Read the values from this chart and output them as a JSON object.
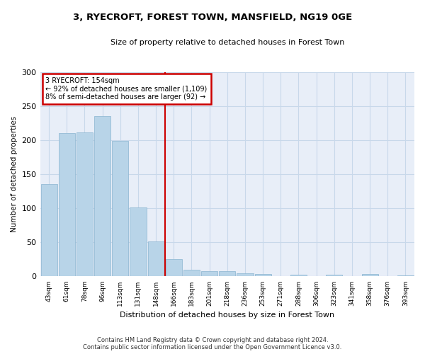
{
  "title": "3, RYECROFT, FOREST TOWN, MANSFIELD, NG19 0GE",
  "subtitle": "Size of property relative to detached houses in Forest Town",
  "xlabel": "Distribution of detached houses by size in Forest Town",
  "ylabel": "Number of detached properties",
  "footer_line1": "Contains HM Land Registry data © Crown copyright and database right 2024.",
  "footer_line2": "Contains public sector information licensed under the Open Government Licence v3.0.",
  "bin_labels": [
    "43sqm",
    "61sqm",
    "78sqm",
    "96sqm",
    "113sqm",
    "131sqm",
    "148sqm",
    "166sqm",
    "183sqm",
    "201sqm",
    "218sqm",
    "236sqm",
    "253sqm",
    "271sqm",
    "288sqm",
    "306sqm",
    "323sqm",
    "341sqm",
    "358sqm",
    "376sqm",
    "393sqm"
  ],
  "bar_values": [
    136,
    210,
    212,
    235,
    199,
    101,
    51,
    25,
    10,
    8,
    8,
    5,
    4,
    0,
    3,
    0,
    3,
    0,
    4,
    0,
    2
  ],
  "bar_color": "#b8d4e8",
  "bar_edgecolor": "#8ab4d0",
  "grid_color": "#c8d8ea",
  "annotation_line_label": "3 RYECROFT: 154sqm",
  "annotation_text_line2": "← 92% of detached houses are smaller (1,109)",
  "annotation_text_line3": "8% of semi-detached houses are larger (92) →",
  "annotation_box_facecolor": "#ffffff",
  "annotation_box_edgecolor": "#cc0000",
  "line_color": "#cc0000",
  "ylim": [
    0,
    300
  ],
  "yticks": [
    0,
    50,
    100,
    150,
    200,
    250,
    300
  ],
  "ax_facecolor": "#e8eef8"
}
